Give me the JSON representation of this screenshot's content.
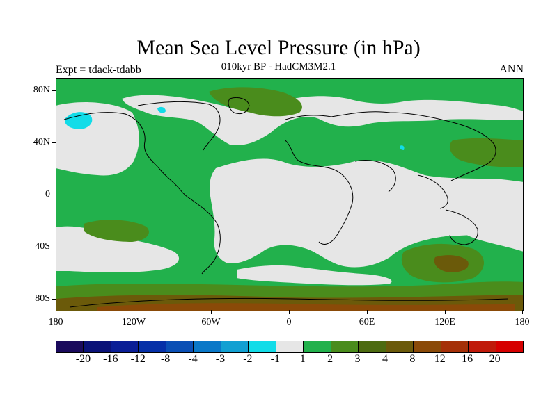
{
  "title": "Mean Sea Level Pressure (in hPa)",
  "subtitle": "010kyr BP - HadCM3M2.1",
  "expt_label": "Expt = tdack-tdabb",
  "season": "ANN",
  "y_axis_labels": [
    "80N",
    "40N",
    "0",
    "40S",
    "80S"
  ],
  "x_axis_labels": [
    "180",
    "120W",
    "60W",
    "0",
    "60E",
    "120E",
    "180"
  ],
  "colorbar": {
    "colors": [
      "#1a0a5c",
      "#0a1278",
      "#0a1e96",
      "#0530a8",
      "#0a4fb5",
      "#0a78c8",
      "#12a0d2",
      "#12dce8",
      "#e6e6e6",
      "#22b14c",
      "#4a8c1c",
      "#4d6b10",
      "#6b5a0a",
      "#8a4a08",
      "#a53008",
      "#c01a0a",
      "#d60000"
    ],
    "labels": [
      "-20",
      "-16",
      "-12",
      "-8",
      "-4",
      "-3",
      "-2",
      "-1",
      "1",
      "2",
      "3",
      "4",
      "8",
      "12",
      "16",
      "20"
    ]
  },
  "legend_colors": {
    "neutral": "#e6e6e6",
    "light_positive": "#22b14c",
    "medium_positive": "#4a8c1c",
    "strong_positive": "#6b5a0a",
    "light_negative": "#12dce8",
    "strong_positive_edge": "#8a4a08"
  }
}
